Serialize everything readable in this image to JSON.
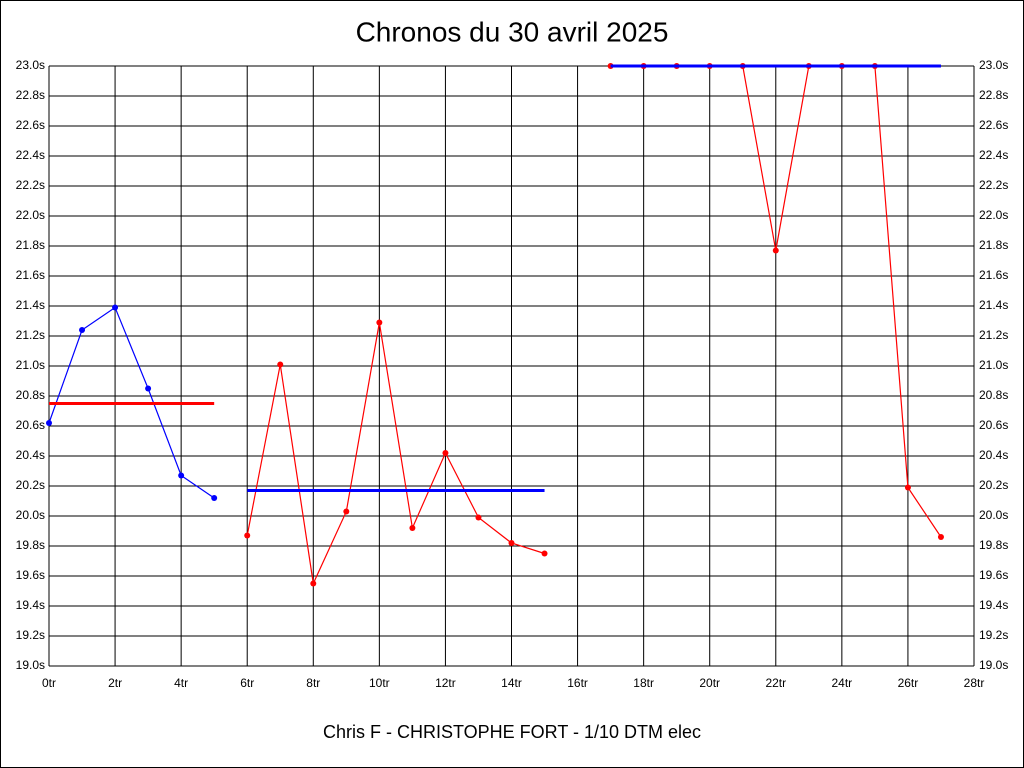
{
  "chart_data": {
    "type": "line",
    "title": "Chronos du 30 avril 2025",
    "xlabel": "Chris F - CHRISTOPHE FORT - 1/10 DTM elec",
    "grid": true,
    "xlim": [
      0,
      28
    ],
    "xticks": [
      {
        "value": 0,
        "label": "0tr"
      },
      {
        "value": 2,
        "label": "2tr"
      },
      {
        "value": 4,
        "label": "4tr"
      },
      {
        "value": 6,
        "label": "6tr"
      },
      {
        "value": 8,
        "label": "8tr"
      },
      {
        "value": 10,
        "label": "10tr"
      },
      {
        "value": 12,
        "label": "12tr"
      },
      {
        "value": 14,
        "label": "14tr"
      },
      {
        "value": 16,
        "label": "16tr"
      },
      {
        "value": 18,
        "label": "18tr"
      },
      {
        "value": 20,
        "label": "20tr"
      },
      {
        "value": 22,
        "label": "22tr"
      },
      {
        "value": 24,
        "label": "24tr"
      },
      {
        "value": 26,
        "label": "26tr"
      },
      {
        "value": 28,
        "label": "28tr"
      }
    ],
    "ylim": [
      19.0,
      23.0
    ],
    "yticks": [
      {
        "value": 19.0,
        "label": "19.0s"
      },
      {
        "value": 19.2,
        "label": "19.2s"
      },
      {
        "value": 19.4,
        "label": "19.4s"
      },
      {
        "value": 19.6,
        "label": "19.6s"
      },
      {
        "value": 19.8,
        "label": "19.8s"
      },
      {
        "value": 20.0,
        "label": "20.0s"
      },
      {
        "value": 20.2,
        "label": "20.2s"
      },
      {
        "value": 20.4,
        "label": "20.4s"
      },
      {
        "value": 20.6,
        "label": "20.6s"
      },
      {
        "value": 20.8,
        "label": "20.8s"
      },
      {
        "value": 21.0,
        "label": "21.0s"
      },
      {
        "value": 21.2,
        "label": "21.2s"
      },
      {
        "value": 21.4,
        "label": "21.4s"
      },
      {
        "value": 21.6,
        "label": "21.6s"
      },
      {
        "value": 21.8,
        "label": "21.8s"
      },
      {
        "value": 22.0,
        "label": "22.0s"
      },
      {
        "value": 22.2,
        "label": "22.2s"
      },
      {
        "value": 22.4,
        "label": "22.4s"
      },
      {
        "value": 22.6,
        "label": "22.6s"
      },
      {
        "value": 22.8,
        "label": "22.8s"
      },
      {
        "value": 23.0,
        "label": "23.0s"
      }
    ],
    "series": [
      {
        "color": "#0000ff",
        "markers": true,
        "width": 1.2,
        "x": [
          0,
          1,
          2,
          3,
          4,
          5
        ],
        "values": [
          20.62,
          21.24,
          21.39,
          20.85,
          20.27,
          20.12
        ]
      },
      {
        "color": "#ff0000",
        "markers": false,
        "width": 3,
        "x": [
          0,
          5
        ],
        "values": [
          20.75,
          20.75
        ]
      },
      {
        "color": "#ff0000",
        "markers": true,
        "width": 1.2,
        "x": [
          6,
          7,
          8,
          9,
          10,
          11,
          12,
          13,
          14,
          15
        ],
        "values": [
          19.87,
          21.01,
          19.55,
          20.03,
          21.29,
          19.92,
          20.42,
          19.99,
          19.82,
          19.75
        ]
      },
      {
        "color": "#0000ff",
        "markers": false,
        "width": 3,
        "x": [
          6,
          15
        ],
        "values": [
          20.17,
          20.17
        ]
      },
      {
        "color": "#ff0000",
        "markers": true,
        "width": 1.2,
        "x": [
          17,
          18,
          19,
          20,
          21,
          22,
          23,
          24,
          25,
          26,
          27
        ],
        "values": [
          23.0,
          23.0,
          23.0,
          23.0,
          23.0,
          21.77,
          23.0,
          23.0,
          23.0,
          20.19,
          19.86
        ]
      },
      {
        "color": "#0000ff",
        "markers": false,
        "width": 3,
        "x": [
          17,
          27
        ],
        "values": [
          23.0,
          23.0
        ]
      }
    ]
  }
}
